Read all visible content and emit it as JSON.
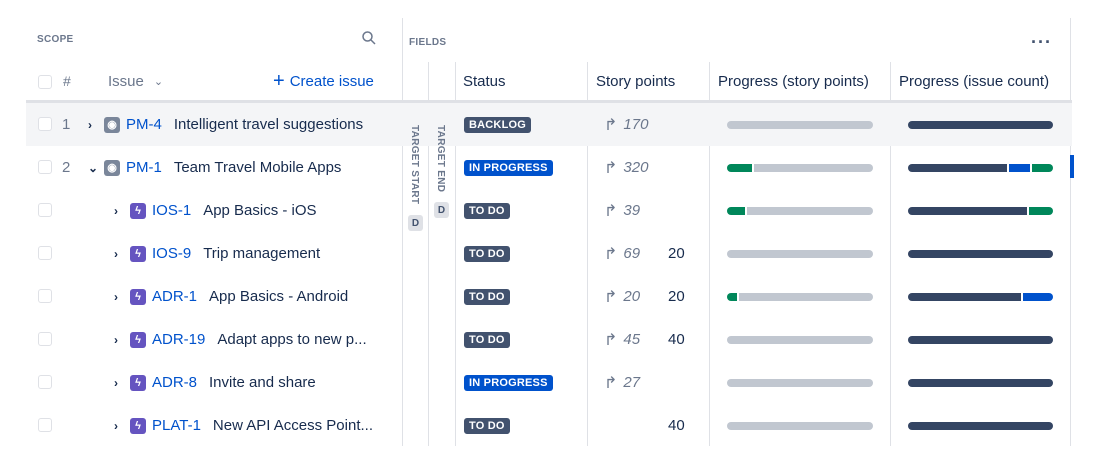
{
  "scope": {
    "title": "SCOPE",
    "search_icon": "search-icon"
  },
  "fields": {
    "title": "FIELDS",
    "more_icon": "more-icon"
  },
  "columns": {
    "number": "#",
    "issue": "Issue",
    "create": "Create issue",
    "target_start": "TARGET START",
    "target_end": "TARGET END",
    "date_badge": "D",
    "status": "Status",
    "story_points": "Story points",
    "progress_sp": "Progress (story points)",
    "progress_ic": "Progress (issue count)"
  },
  "colors": {
    "done": "#00875a",
    "in_progress": "#0052cc",
    "todo": "#344563",
    "remaining": "#c1c7d0",
    "epic": "#7a869a",
    "story": "#6554c0"
  },
  "rows": [
    {
      "num": "1",
      "expand": "collapsed",
      "type": "epic",
      "key": "PM-4",
      "summary": "Intelligent travel suggestions",
      "status": "BACKLOG",
      "status_color": "#42526e",
      "rollup": "170",
      "points": "",
      "sp_progress": {
        "done": 0,
        "in_progress": 0
      },
      "ic_progress": {
        "todo": 100,
        "in_progress": 0,
        "done": 0
      },
      "highlight": true
    },
    {
      "num": "2",
      "expand": "expanded",
      "type": "epic",
      "key": "PM-1",
      "summary": "Team Travel Mobile Apps",
      "status": "IN PROGRESS",
      "status_color": "#0052cc",
      "rollup": "320",
      "points": "",
      "sp_progress": {
        "done": 17,
        "in_progress": 0
      },
      "ic_progress": {
        "todo": 70,
        "in_progress": 15,
        "done": 15
      }
    },
    {
      "num": "",
      "expand": "collapsed",
      "type": "story",
      "key": "IOS-1",
      "summary": "App Basics - iOS",
      "status": "TO DO",
      "status_color": "#42526e",
      "rollup": "39",
      "points": "",
      "sp_progress": {
        "done": 12,
        "in_progress": 0
      },
      "ic_progress": {
        "todo": 83,
        "in_progress": 0,
        "done": 17
      }
    },
    {
      "num": "",
      "expand": "collapsed",
      "type": "story",
      "key": "IOS-9",
      "summary": "Trip management",
      "status": "TO DO",
      "status_color": "#42526e",
      "rollup": "69",
      "points": "20",
      "sp_progress": {
        "done": 0,
        "in_progress": 0
      },
      "ic_progress": {
        "todo": 100,
        "in_progress": 0,
        "done": 0
      }
    },
    {
      "num": "",
      "expand": "collapsed",
      "type": "story",
      "key": "ADR-1",
      "summary": "App Basics - Android",
      "status": "TO DO",
      "status_color": "#42526e",
      "rollup": "20",
      "points": "20",
      "sp_progress": {
        "done": 7,
        "in_progress": 0
      },
      "ic_progress": {
        "todo": 79,
        "in_progress": 21,
        "done": 0
      }
    },
    {
      "num": "",
      "expand": "collapsed",
      "type": "story",
      "key": "ADR-19",
      "summary": "Adapt apps to new p...",
      "status": "TO DO",
      "status_color": "#42526e",
      "rollup": "45",
      "points": "40",
      "sp_progress": {
        "done": 0,
        "in_progress": 0
      },
      "ic_progress": {
        "todo": 100,
        "in_progress": 0,
        "done": 0
      }
    },
    {
      "num": "",
      "expand": "collapsed",
      "type": "story",
      "key": "ADR-8",
      "summary": "Invite and share",
      "status": "IN PROGRESS",
      "status_color": "#0052cc",
      "rollup": "27",
      "points": "",
      "sp_progress": {
        "done": 0,
        "in_progress": 0
      },
      "ic_progress": {
        "todo": 100,
        "in_progress": 0,
        "done": 0
      }
    },
    {
      "num": "",
      "expand": "collapsed",
      "type": "story",
      "key": "PLAT-1",
      "summary": "New API Access Point...",
      "status": "TO DO",
      "status_color": "#42526e",
      "rollup": "",
      "points": "40",
      "sp_progress": {
        "done": 0,
        "in_progress": 0
      },
      "ic_progress": {
        "todo": 100,
        "in_progress": 0,
        "done": 0
      }
    }
  ]
}
